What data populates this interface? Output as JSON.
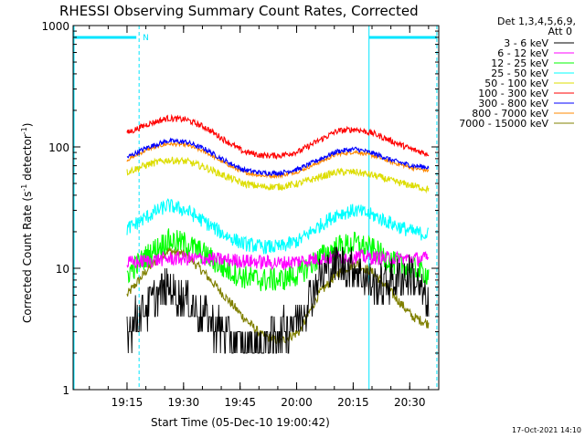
{
  "chart_data": {
    "type": "line",
    "title": "RHESSI Observing Summary Count Rates, Corrected",
    "xlabel": "Start Time (05-Dec-10 19:00:42)",
    "ylabel_main": "Corrected Count Rate (s",
    "ylabel_sup1": "-1",
    "ylabel_mid": " detector",
    "ylabel_sup2": "-1",
    "ylabel_end": ")",
    "yscale": "log",
    "ylim": [
      1,
      1000
    ],
    "xlim_minutes": [
      0,
      37.6
    ],
    "x_ticks": [
      {
        "label": "19:15",
        "minute": 14.3
      },
      {
        "label": "19:30",
        "minute": 29.3
      },
      {
        "label": "19:45",
        "minute": 44.3
      },
      {
        "label": "20:00",
        "minute": 59.3
      },
      {
        "label": "20:15",
        "minute": 74.3
      },
      {
        "label": "20:30",
        "minute": 89.3
      }
    ],
    "y_ticks": [
      {
        "label": "1",
        "value": 1
      },
      {
        "label": "10",
        "value": 10
      },
      {
        "label": "100",
        "value": 100
      },
      {
        "label": "1000",
        "value": 1000
      }
    ],
    "legend_header": [
      "Det 1,3,4,5,6,9,",
      "Att 0"
    ],
    "grid": false,
    "legend_position": "right",
    "data_start_minute": 14.3,
    "data_end_minute": 94.3,
    "series": [
      {
        "name": "3 - 6 keV",
        "color": "#000000",
        "base": 3.5,
        "amp": 1.1,
        "noise": 0.35,
        "x": [
          14.3,
          20,
          25,
          30,
          35,
          40,
          45,
          50,
          55,
          60,
          65,
          70,
          75,
          80,
          85,
          90,
          94
        ],
        "values": [
          3.2,
          5,
          7,
          5.5,
          4,
          3,
          2.2,
          2.2,
          3,
          4,
          8,
          11,
          10,
          7,
          8,
          9,
          5
        ]
      },
      {
        "name": "6 - 12 keV",
        "color": "#ff00ff",
        "base": 12,
        "amp": 0.15,
        "noise": 0.12,
        "x": [
          14.3,
          25,
          35,
          45,
          55,
          65,
          75,
          85,
          94
        ],
        "values": [
          11,
          12,
          12,
          11.5,
          11,
          12,
          12.5,
          12,
          12
        ]
      },
      {
        "name": "12 - 25 keV",
        "color": "#00ff00",
        "base": 12,
        "amp": 0.35,
        "noise": 0.2,
        "x": [
          14.3,
          20,
          25,
          30,
          35,
          40,
          45,
          50,
          55,
          60,
          65,
          70,
          75,
          80,
          85,
          90,
          94
        ],
        "values": [
          9,
          13,
          17,
          16,
          13,
          10,
          8.5,
          8,
          8,
          9,
          12,
          15,
          16,
          14,
          11,
          10,
          9
        ]
      },
      {
        "name": "25 - 50 keV",
        "color": "#00ffff",
        "base": 22,
        "amp": 0.4,
        "noise": 0.12,
        "x": [
          14.3,
          20,
          25,
          30,
          35,
          40,
          45,
          50,
          55,
          60,
          65,
          70,
          75,
          80,
          85,
          90,
          94
        ],
        "values": [
          21,
          27,
          33,
          30,
          24,
          19,
          16,
          15,
          15,
          17,
          22,
          28,
          30,
          27,
          23,
          20,
          19
        ]
      },
      {
        "name": "50 - 100 keV",
        "color": "#dddd00",
        "base": 62,
        "amp": 0.25,
        "noise": 0.06,
        "x": [
          14.3,
          20,
          25,
          30,
          35,
          40,
          45,
          50,
          55,
          60,
          65,
          70,
          75,
          80,
          85,
          90,
          94
        ],
        "values": [
          62,
          72,
          78,
          76,
          68,
          58,
          50,
          47,
          47,
          50,
          56,
          62,
          62,
          58,
          52,
          48,
          45
        ]
      },
      {
        "name": "100 - 300 keV",
        "color": "#ff0000",
        "base": 135,
        "amp": 0.25,
        "noise": 0.05,
        "x": [
          14.3,
          20,
          25,
          30,
          35,
          40,
          45,
          50,
          55,
          60,
          65,
          70,
          75,
          80,
          85,
          90,
          94
        ],
        "values": [
          130,
          155,
          172,
          168,
          145,
          115,
          92,
          85,
          85,
          92,
          112,
          135,
          140,
          128,
          110,
          95,
          88
        ]
      },
      {
        "name": "300 - 800 keV",
        "color": "#0000ff",
        "base": 85,
        "amp": 0.22,
        "noise": 0.04,
        "x": [
          14.3,
          20,
          25,
          30,
          35,
          40,
          45,
          50,
          55,
          60,
          65,
          70,
          75,
          80,
          85,
          90,
          94
        ],
        "values": [
          82,
          100,
          112,
          110,
          96,
          78,
          65,
          61,
          61,
          66,
          78,
          92,
          96,
          88,
          77,
          70,
          68
        ]
      },
      {
        "name": "800 - 7000 keV",
        "color": "#ff8800",
        "base": 80,
        "amp": 0.22,
        "noise": 0.03,
        "x": [
          14.3,
          20,
          25,
          30,
          35,
          40,
          45,
          50,
          55,
          60,
          65,
          70,
          75,
          80,
          85,
          90,
          94
        ],
        "values": [
          78,
          96,
          106,
          104,
          91,
          74,
          62,
          58,
          58,
          63,
          74,
          87,
          91,
          84,
          74,
          67,
          64
        ]
      },
      {
        "name": "7000 - 15000 keV",
        "color": "#808000",
        "base": 7,
        "amp": 0.7,
        "noise": 0.08,
        "x": [
          14.3,
          20,
          25,
          30,
          35,
          40,
          45,
          50,
          55,
          60,
          65,
          70,
          75,
          80,
          85,
          90,
          94
        ],
        "values": [
          6,
          10,
          14,
          13,
          9,
          6,
          4,
          2.8,
          2.5,
          3,
          6,
          9,
          11,
          9,
          6,
          4,
          3.5
        ]
      }
    ],
    "annotations": {
      "saa_flag_label": "N",
      "timestamp": "17-Oct-2021 14:10"
    }
  }
}
